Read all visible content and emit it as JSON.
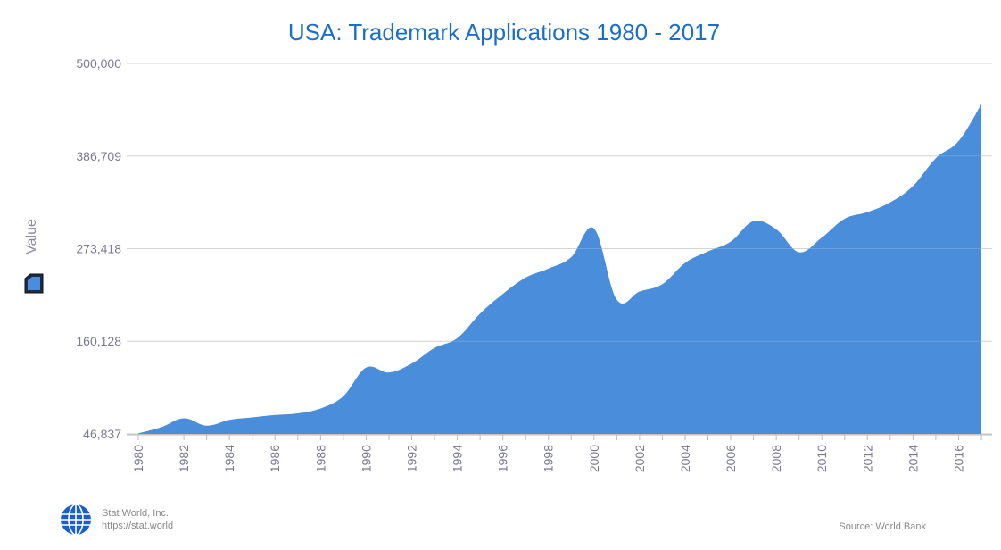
{
  "chart_data": {
    "type": "area",
    "title": "USA: Trademark Applications 1980 - 2017",
    "ylabel": "Value",
    "xlabel": "",
    "ylim": [
      46837,
      500000
    ],
    "yticks": [
      "46,837",
      "160,128",
      "273,418",
      "386,709",
      "500,000"
    ],
    "ytick_values": [
      46837,
      160128,
      273418,
      386709,
      500000
    ],
    "xlim": [
      1980,
      2017
    ],
    "xticks": [
      "1980",
      "1982",
      "1984",
      "1986",
      "1988",
      "1990",
      "1992",
      "1994",
      "1996",
      "1998",
      "2000",
      "2002",
      "2004",
      "2006",
      "2008",
      "2010",
      "2012",
      "2014",
      "2016"
    ],
    "grid": true,
    "series": [
      {
        "color": "#4a8ddb",
        "x": [
          1980,
          1981,
          1982,
          1983,
          1984,
          1985,
          1986,
          1987,
          1988,
          1989,
          1990,
          1991,
          1992,
          1993,
          1994,
          1995,
          1996,
          1997,
          1998,
          1999,
          2000,
          2001,
          2002,
          2003,
          2004,
          2005,
          2006,
          2007,
          2008,
          2009,
          2010,
          2011,
          2012,
          2013,
          2014,
          2015,
          2016,
          2017
        ],
        "values": [
          47500,
          55000,
          66000,
          57000,
          64000,
          67000,
          70000,
          72000,
          78000,
          93000,
          128000,
          122000,
          133000,
          152000,
          164000,
          194000,
          218000,
          238000,
          249000,
          263000,
          298000,
          211000,
          221000,
          230000,
          256000,
          270000,
          282000,
          307000,
          297000,
          269000,
          287000,
          310000,
          318000,
          330000,
          350000,
          384000,
          405000,
          450000
        ]
      }
    ]
  },
  "branding": {
    "name": "Stat World, Inc.",
    "url": "https://stat.world"
  },
  "source": "Source: World Bank"
}
